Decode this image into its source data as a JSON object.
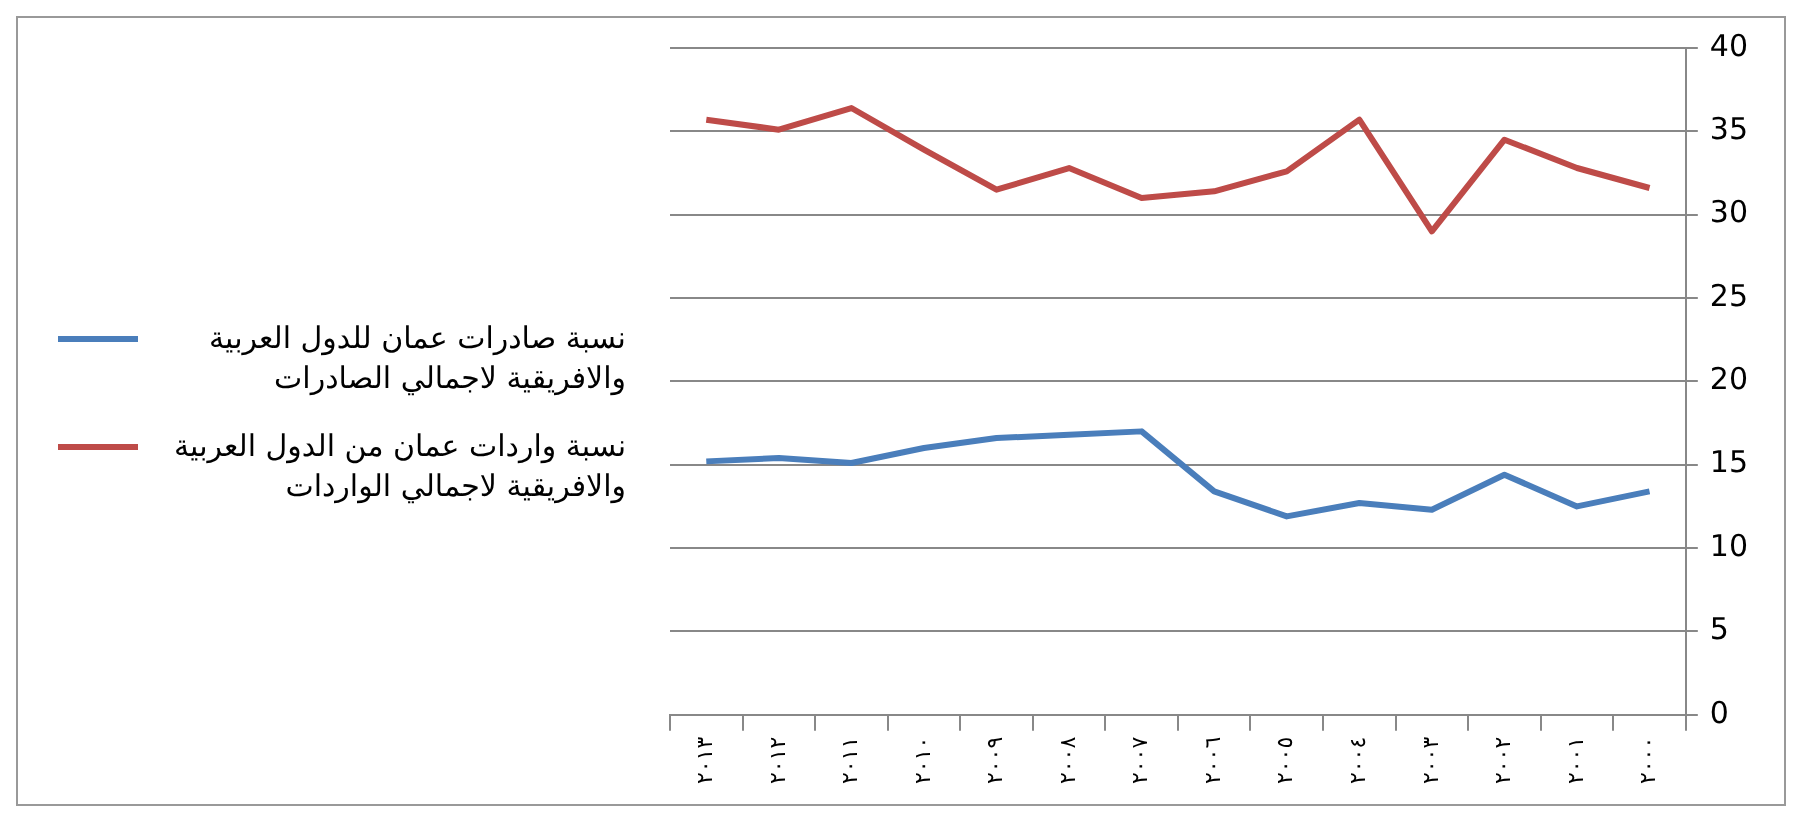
{
  "chart_data": {
    "type": "line",
    "categories": [
      "٢٠١٣",
      "٢٠١٢",
      "٢٠١١",
      "٢٠١٠",
      "٢٠٠٩",
      "٢٠٠٨",
      "٢٠٠٧",
      "٢٠٠٦",
      "٢٠٠٥",
      "٢٠٠٤",
      "٢٠٠٣",
      "٢٠٠٢",
      "٢٠٠١",
      "٢٠٠٠"
    ],
    "series": [
      {
        "name": "نسبة صادرات عمان للدول العربية والافريقية لاجمالي الصادرات",
        "color": "#4a7ebb",
        "values": [
          15.2,
          15.4,
          15.1,
          16.0,
          16.6,
          16.8,
          17.0,
          13.4,
          11.9,
          12.7,
          12.3,
          14.4,
          12.5,
          13.4
        ]
      },
      {
        "name": "نسبة واردات عمان من الدول العربية والافريقية لاجمالي الواردات",
        "color": "#be4b48",
        "values": [
          35.7,
          35.1,
          36.4,
          33.9,
          31.5,
          32.8,
          31.0,
          31.4,
          32.6,
          35.7,
          29.0,
          34.5,
          32.8,
          31.6
        ]
      }
    ],
    "ylim": [
      0,
      40
    ],
    "yticks": [
      0,
      5,
      10,
      15,
      20,
      25,
      30,
      35,
      40
    ],
    "grid": "y",
    "legend": "left",
    "marker": "none",
    "line_style": "solid"
  }
}
